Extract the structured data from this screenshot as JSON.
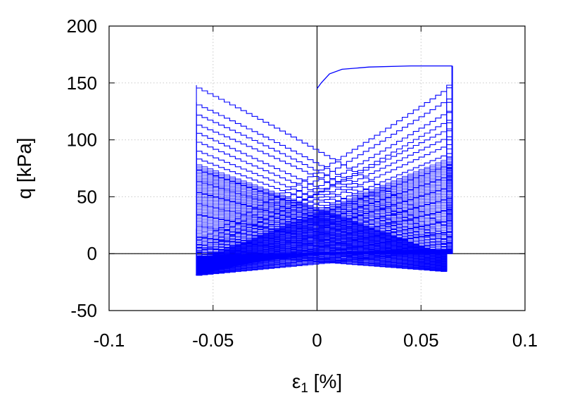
{
  "chart_data": {
    "type": "line",
    "title": "",
    "xlabel_symbol": "ε",
    "xlabel_subscript": "1",
    "xlabel_unit": " [%]",
    "ylabel": "q [kPa]",
    "xlim": [
      -0.1,
      0.1
    ],
    "ylim": [
      -50,
      200
    ],
    "xticks": [
      -0.1,
      -0.05,
      0,
      0.05,
      0.1
    ],
    "xtick_labels": [
      "-0.1",
      "-0.05",
      "0",
      "0.05",
      "0.1"
    ],
    "yticks": [
      -50,
      0,
      50,
      100,
      150,
      200
    ],
    "ytick_labels": [
      "-50",
      "0",
      "50",
      "100",
      "150",
      "200"
    ],
    "grid": true,
    "zero_lines": true,
    "series_color": "#0000ff",
    "series": [
      {
        "description": "cyclic stress-strain loops",
        "x_min": -0.058,
        "x_max": 0.065,
        "initial_loading": [
          [
            0,
            145
          ],
          [
            0.002,
            150
          ],
          [
            0.006,
            158
          ],
          [
            0.012,
            162
          ],
          [
            0.025,
            164
          ],
          [
            0.045,
            165
          ],
          [
            0.065,
            165
          ]
        ],
        "loops": [
          {
            "upper_left": 22,
            "upper_right": 149,
            "lower_left": 12,
            "lower_right": 148
          },
          {
            "upper_left": 14,
            "upper_right": 139,
            "lower_left": 8,
            "lower_right": 133
          },
          {
            "upper_left": 10,
            "upper_right": 128,
            "lower_left": 5,
            "lower_right": 124
          },
          {
            "upper_left": 8,
            "upper_right": 120,
            "lower_left": 3,
            "lower_right": 115
          },
          {
            "upper_left": 6,
            "upper_right": 112,
            "lower_left": 1,
            "lower_right": 108
          },
          {
            "upper_left": 4,
            "upper_right": 105,
            "lower_left": -1,
            "lower_right": 100
          },
          {
            "upper_left": 2,
            "upper_right": 98,
            "lower_left": -3,
            "lower_right": 92
          },
          {
            "upper_left": 0,
            "upper_right": 90,
            "lower_left": -5,
            "lower_right": 85
          },
          {
            "upper_left": -2,
            "upper_right": 80,
            "lower_left": -7,
            "lower_right": 75
          },
          {
            "upper_left": -4,
            "upper_right": 70,
            "lower_left": -9,
            "lower_right": 65
          },
          {
            "upper_left": -6,
            "upper_right": 60,
            "lower_left": -11,
            "lower_right": 55
          },
          {
            "upper_left": -8,
            "upper_right": 50,
            "lower_left": -13,
            "lower_right": 45
          },
          {
            "upper_left": -10,
            "upper_right": 40,
            "lower_left": -15,
            "lower_right": 35
          },
          {
            "upper_left": -12,
            "upper_right": 30,
            "lower_left": -16,
            "lower_right": 25
          },
          {
            "upper_left": -14,
            "upper_right": 20,
            "lower_left": -17,
            "lower_right": 15
          },
          {
            "upper_left": -15,
            "upper_right": 10,
            "lower_left": -18,
            "lower_right": 6
          },
          {
            "upper_left": -16,
            "upper_right": 4,
            "lower_left": -19,
            "lower_right": 2
          }
        ]
      }
    ]
  }
}
